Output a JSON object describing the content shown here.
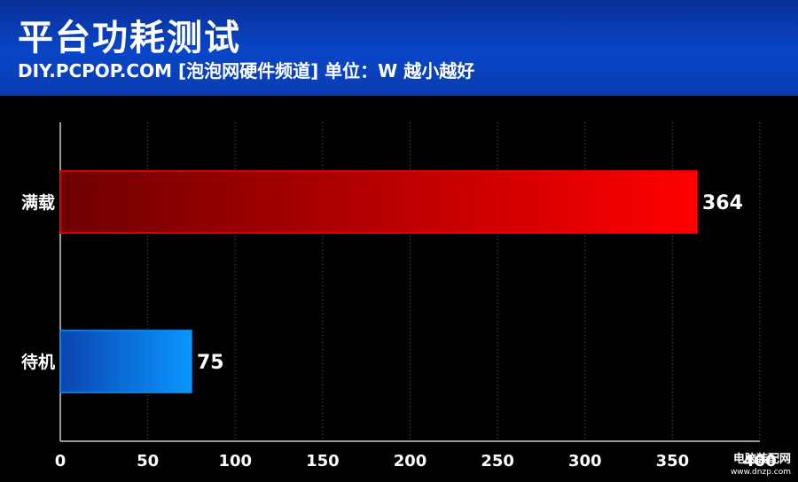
{
  "header": {
    "title": "平台功耗测试",
    "subtitle": "DIY.PCPOP.COM [泡泡网硬件频道] 单位：W  越小越好"
  },
  "chart_data": {
    "type": "bar",
    "orientation": "horizontal",
    "categories": [
      "满载",
      "待机"
    ],
    "values": [
      364,
      75
    ],
    "xlim": [
      0,
      400
    ],
    "xticks": [
      0,
      50,
      100,
      150,
      200,
      250,
      300,
      350,
      400
    ],
    "grid": true,
    "colors": {
      "满载": [
        "#6e0000",
        "#ff0000"
      ],
      "待机": [
        "#0a45b0",
        "#0a96ff"
      ],
      "grid": "#666666",
      "axis": "#cccccc",
      "text": "#ffffff"
    }
  },
  "watermark": {
    "line1": "电脑装配网",
    "line2": "www.dnzp.com"
  }
}
